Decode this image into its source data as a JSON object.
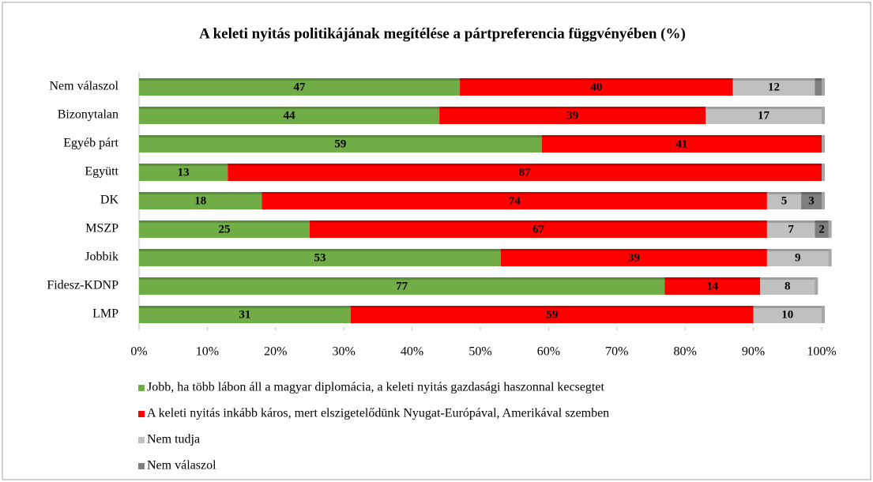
{
  "chart_data": {
    "type": "bar",
    "orientation": "horizontal",
    "stacked": true,
    "title": "A keleti nyitás politikájának megítélése a pártpreferencia függvényében (%)",
    "categories": [
      "Nem válaszol",
      "Bizonytalan",
      "Egyéb párt",
      "Együtt",
      "DK",
      "MSZP",
      "Jobbik",
      "Fidesz-KDNP",
      "LMP"
    ],
    "series": [
      {
        "name": "Jobb, ha több lábon áll a magyar diplomácia, a keleti nyitás gazdasági haszonnal kecsegtet",
        "color": "#70ad47",
        "values": [
          47,
          44,
          59,
          13,
          18,
          25,
          53,
          77,
          31
        ]
      },
      {
        "name": "A keleti nyitás inkább káros, mert elszigetelődünk Nyugat-Európával, Amerikával szemben",
        "color": "#ff0000",
        "values": [
          40,
          39,
          41,
          87,
          74,
          67,
          39,
          14,
          59
        ]
      },
      {
        "name": "Nem tudja",
        "color": "#c0c0c0",
        "values": [
          12,
          17,
          null,
          null,
          5,
          7,
          9,
          8,
          10
        ]
      },
      {
        "name": "Nem válaszol",
        "color": "#7f7f7f",
        "values": [
          1,
          null,
          null,
          null,
          3,
          2,
          null,
          null,
          null
        ],
        "value_labels": [
          null,
          null,
          null,
          null,
          "3",
          "2",
          null,
          null,
          null
        ]
      }
    ],
    "xlim": [
      0,
      100
    ],
    "xticks": [
      {
        "value": 0,
        "label": "0%"
      },
      {
        "value": 10,
        "label": "10%"
      },
      {
        "value": 20,
        "label": "20%"
      },
      {
        "value": 30,
        "label": "30%"
      },
      {
        "value": 40,
        "label": "40%"
      },
      {
        "value": 50,
        "label": "50%"
      },
      {
        "value": 60,
        "label": "60%"
      },
      {
        "value": 70,
        "label": "70%"
      },
      {
        "value": 80,
        "label": "80%"
      },
      {
        "value": 90,
        "label": "90%"
      },
      {
        "value": 100,
        "label": "100%"
      }
    ],
    "legend": "bottom"
  }
}
